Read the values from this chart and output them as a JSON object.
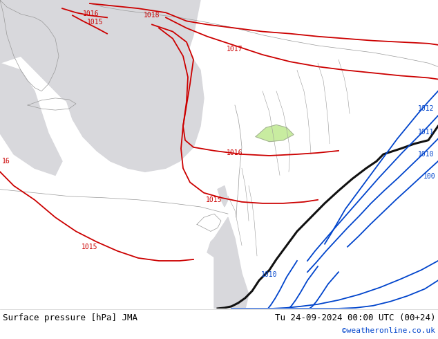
{
  "title_left": "Surface pressure [hPa] JMA",
  "title_right": "Tu 24-09-2024 00:00 UTC (00+24)",
  "watermark": "©weatheronline.co.uk",
  "bg_green": "#c8eca0",
  "sea_gray": "#d8d8e0",
  "land_green": "#c8eca0",
  "red": "#cc0000",
  "blue": "#0044cc",
  "black": "#111111",
  "gray_border": "#aaaaaa",
  "figsize": [
    6.34,
    4.9
  ],
  "dpi": 100
}
